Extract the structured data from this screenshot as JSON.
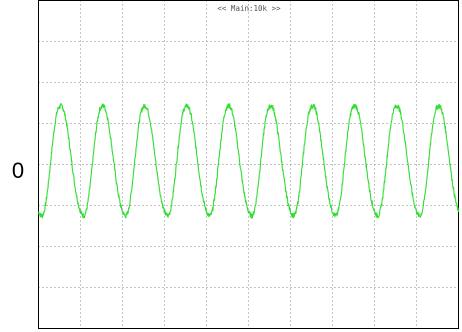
{
  "chart_data": {
    "type": "line",
    "title": "<< Main:10k >>",
    "xlabel": "",
    "ylabel": "",
    "y_tick_labels": [
      "0"
    ],
    "x_divisions": 10,
    "y_divisions": 8,
    "ylim": [
      -4,
      4
    ],
    "xlim": [
      0,
      10
    ],
    "grid": true,
    "series": [
      {
        "color": "#33dd33",
        "cycles": 10,
        "amplitude_peak": 1.4,
        "amplitude_trough": -1.25,
        "shape": "sawtooth-like periodic wave"
      }
    ]
  }
}
